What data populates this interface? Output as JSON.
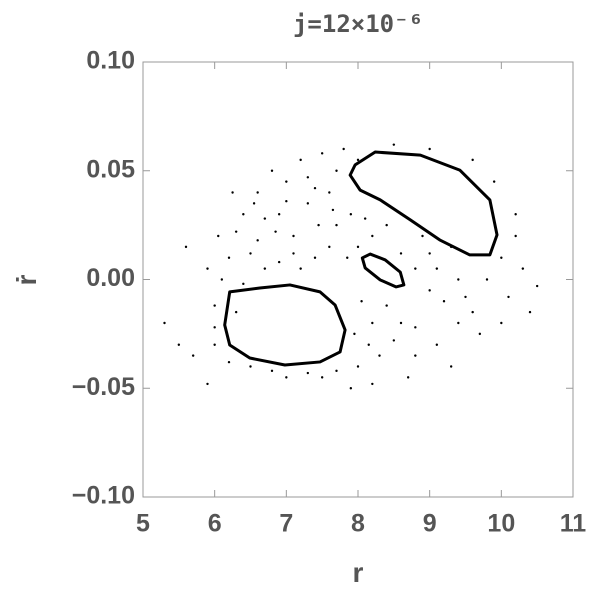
{
  "chart_data": {
    "type": "scatter",
    "title": "j=12×10⁻⁶",
    "x_label": "r",
    "y_label": "ṙ",
    "xlim": [
      5,
      11
    ],
    "xticks": [
      5,
      6,
      7,
      8,
      9,
      10,
      11
    ],
    "ylim": [
      -0.1,
      0.1
    ],
    "yticks": [
      {
        "value": -0.1,
        "label": "−0.10"
      },
      {
        "value": -0.05,
        "label": "−0.05"
      },
      {
        "value": 0,
        "label": "0.00"
      },
      {
        "value": 0.05,
        "label": "0.05"
      },
      {
        "value": 0.1,
        "label": "0.10"
      }
    ],
    "series": [
      {
        "color": "#000000",
        "closed": false,
        "x": [
          5.3,
          5.5,
          5.6,
          5.9,
          6.0,
          6.05,
          6.1,
          6.2,
          6.3,
          6.4,
          6.5,
          6.6,
          6.7,
          6.8,
          6.9,
          7.0,
          7.1,
          7.2,
          7.3,
          7.4,
          7.5,
          7.6,
          7.7,
          7.8,
          7.9,
          8.0,
          8.1,
          8.2,
          8.4,
          8.6,
          8.8,
          9.0,
          9.2,
          9.4,
          9.6,
          9.8,
          10.0,
          10.1,
          10.2,
          10.3,
          10.5,
          10.4,
          10.0,
          9.7,
          9.4,
          9.1,
          8.8,
          8.5,
          8.3,
          8.0,
          7.9,
          7.7,
          7.5,
          7.3,
          7.0,
          6.8,
          6.5,
          6.2,
          6.0,
          5.9,
          6.3,
          6.6,
          6.9,
          7.2,
          7.4,
          7.6,
          7.85,
          8.05,
          8.2,
          8.4,
          8.6,
          8.8,
          9.0,
          9.3,
          10.2,
          9.9,
          9.6,
          9.0,
          8.5,
          8.0,
          7.7,
          7.3,
          7.0,
          6.7,
          6.4,
          6.0,
          5.7,
          8.7,
          8.2,
          9.3,
          9.5,
          7.1,
          6.85,
          8.9,
          9.1,
          7.95,
          8.15,
          7.65,
          7.45,
          6.55,
          6.25
        ],
        "y": [
          -0.02,
          -0.03,
          0.015,
          -0.048,
          -0.03,
          0.02,
          0.0,
          0.01,
          -0.015,
          0.03,
          0.012,
          0.04,
          0.028,
          0.05,
          0.008,
          0.045,
          0.02,
          0.055,
          0.035,
          0.01,
          0.058,
          0.04,
          0.025,
          0.06,
          0.03,
          0.015,
          0.028,
          0.02,
          0.025,
          0.012,
          0.005,
          -0.005,
          -0.01,
          0.0,
          -0.015,
          0.0,
          0.01,
          -0.008,
          0.02,
          0.005,
          -0.003,
          -0.015,
          -0.02,
          -0.025,
          -0.02,
          -0.03,
          -0.022,
          -0.028,
          -0.035,
          -0.04,
          -0.05,
          -0.042,
          -0.045,
          -0.043,
          -0.045,
          -0.042,
          -0.04,
          -0.038,
          -0.012,
          0.005,
          0.022,
          0.018,
          0.03,
          0.005,
          0.042,
          0.015,
          0.01,
          -0.01,
          -0.02,
          -0.012,
          -0.02,
          -0.035,
          0.012,
          0.015,
          0.03,
          0.045,
          0.055,
          0.06,
          0.062,
          0.055,
          0.05,
          0.047,
          0.036,
          0.005,
          -0.002,
          -0.022,
          -0.035,
          -0.045,
          -0.048,
          -0.04,
          -0.008,
          0.012,
          0.022,
          0.02,
          0.005,
          -0.025,
          -0.03,
          0.032,
          0.025,
          0.035,
          0.04
        ]
      },
      {
        "color": "#000000",
        "closed": true,
        "x": [
          7.96,
          8.24,
          8.87,
          9.42,
          9.84,
          9.94,
          9.84,
          9.56,
          9.14,
          8.73,
          8.31,
          8.03,
          7.89
        ],
        "y": [
          0.0527,
          0.0586,
          0.0572,
          0.0503,
          0.0366,
          0.0205,
          0.0113,
          0.0113,
          0.0182,
          0.0274,
          0.0366,
          0.0411,
          0.048
        ]
      },
      {
        "color": "#000000",
        "closed": true,
        "x": [
          6.21,
          6.63,
          7.05,
          7.47,
          7.68,
          7.82,
          7.75,
          7.47,
          6.98,
          6.49,
          6.21,
          6.14
        ],
        "y": [
          -0.0057,
          -0.0039,
          -0.0025,
          -0.0057,
          -0.0117,
          -0.0232,
          -0.0333,
          -0.0379,
          -0.0393,
          -0.0361,
          -0.0301,
          -0.0209
        ]
      },
      {
        "color": "#000000",
        "closed": true,
        "x": [
          8.06,
          8.17,
          8.38,
          8.59,
          8.64,
          8.53,
          8.31,
          8.1
        ],
        "y": [
          0.0099,
          0.0117,
          0.009,
          0.0034,
          -0.0025,
          -0.0034,
          -0.0002,
          0.0053
        ]
      }
    ]
  }
}
